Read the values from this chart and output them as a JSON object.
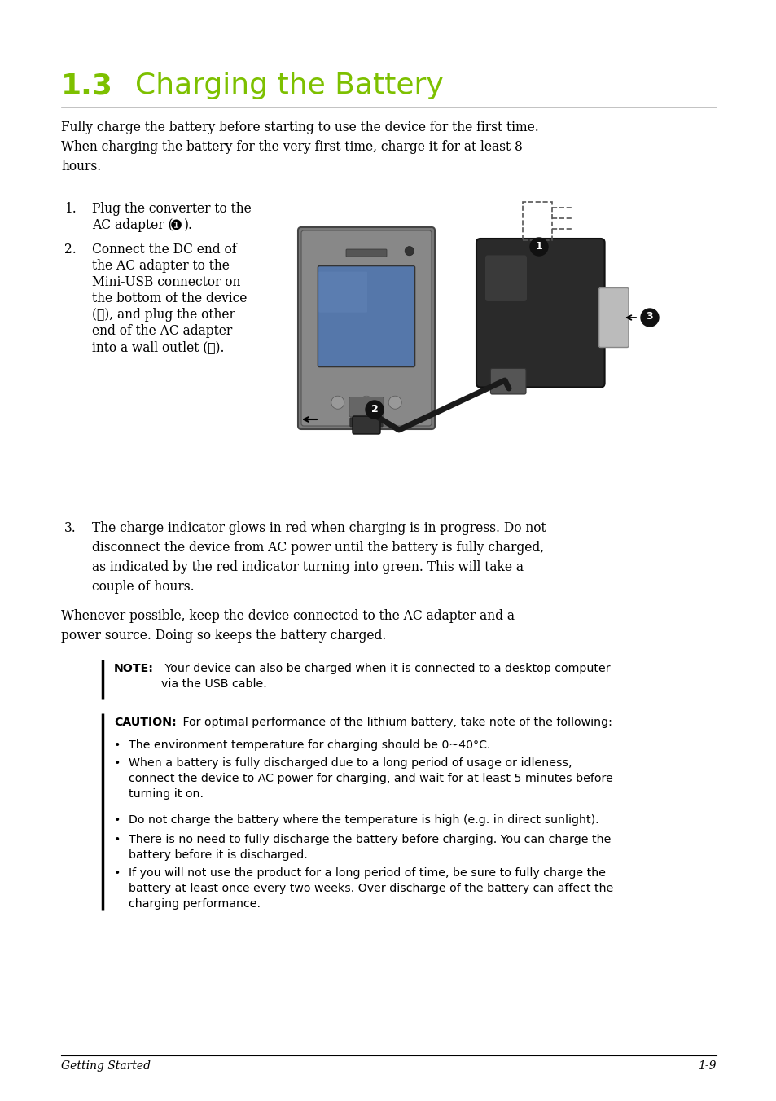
{
  "bg_color": "#ffffff",
  "title_number": "1.3",
  "title_text": "Charging the Battery",
  "title_number_color": "#7dc000",
  "title_text_color": "#7dc000",
  "body_fontsize": 11.2,
  "small_fontsize": 10.2,
  "footer_left": "Getting Started",
  "footer_right": "1-9"
}
